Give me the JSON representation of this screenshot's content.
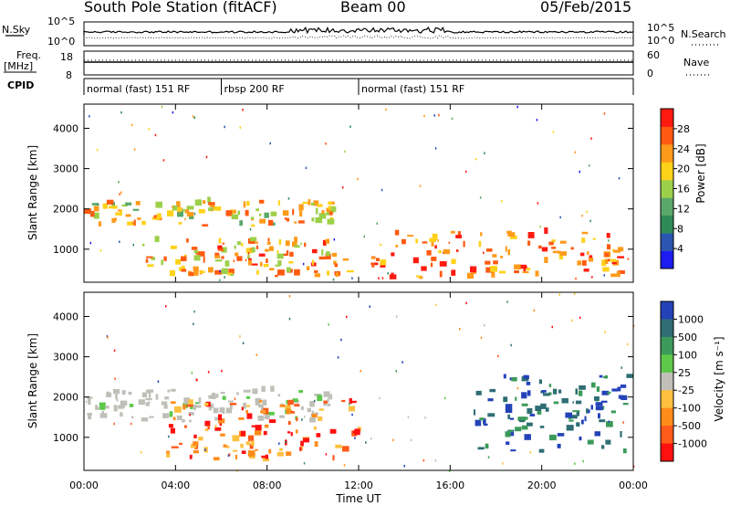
{
  "header": {
    "station": "South Pole Station (fitACF)",
    "beam": "Beam 00",
    "date": "05/Feb/2015"
  },
  "top_panels": {
    "nsky_label": "N.Sky",
    "nsearch_label": "N.Search",
    "freq_label": "Freq.",
    "freq_unit": "[MHz]",
    "nave_label": "Nave",
    "cpid_label": "CPID",
    "noise_ticks_left": [
      "10^5",
      "10^0"
    ],
    "noise_ticks_right": [
      "10^5",
      "10^0"
    ],
    "freq_ticks_left": [
      "18",
      "8"
    ],
    "nave_ticks_right": [
      "60",
      "0"
    ],
    "cpid_segments": [
      {
        "label": "normal (fast) 151 RF",
        "start_hour": 0,
        "end_hour": 6
      },
      {
        "label": "rbsp 200 RF",
        "start_hour": 6,
        "end_hour": 12
      },
      {
        "label": "normal (fast) 151 RF",
        "start_hour": 12,
        "end_hour": 24
      }
    ]
  },
  "chart_data": [
    {
      "type": "heatmap",
      "quantity": "Power",
      "ylabel": "Slant Range [km]",
      "xlabel": "Time UT",
      "xlim_hours": [
        0,
        24
      ],
      "ylim": [
        180,
        4600
      ],
      "x_ticks": [
        "00:00",
        "04:00",
        "08:00",
        "12:00",
        "16:00",
        "20:00",
        "00:00"
      ],
      "y_ticks": [
        1000,
        2000,
        3000,
        4000
      ],
      "colorbar": {
        "label": "Power [dB]",
        "range": [
          0,
          32
        ],
        "ticks": [
          4,
          8,
          12,
          16,
          20,
          24,
          28
        ],
        "colors": [
          "#1c1cf0",
          "#2b55b0",
          "#2e8b57",
          "#5aa86a",
          "#9cd04a",
          "#ffd21a",
          "#ff9a1a",
          "#ff5a10",
          "#ff1a10"
        ]
      },
      "features": [
        {
          "name": "band 1700-2100 km",
          "start_hour": 0,
          "end_hour": 10.8,
          "range_km": [
            1550,
            2150
          ],
          "level": 20
        },
        {
          "name": "near range echoes",
          "start_hour": 2.5,
          "end_hour": 11.5,
          "range_km": [
            300,
            1200
          ],
          "level": 22
        },
        {
          "name": "near range echoes afternoon",
          "start_hour": 12.5,
          "end_hour": 23.5,
          "range_km": [
            250,
            1400
          ],
          "level": 26
        }
      ]
    },
    {
      "type": "heatmap",
      "quantity": "Velocity",
      "ylabel": "Slant Range [km]",
      "xlabel": "Time UT",
      "xlim_hours": [
        0,
        24
      ],
      "ylim": [
        180,
        4600
      ],
      "x_ticks": [
        "00:00",
        "04:00",
        "08:00",
        "12:00",
        "16:00",
        "20:00",
        "00:00"
      ],
      "y_ticks": [
        1000,
        2000,
        3000,
        4000
      ],
      "colorbar": {
        "label": "Velocity [m s⁻¹]",
        "ticks": [
          "1000",
          "500",
          "100",
          "25",
          "-25",
          "-100",
          "-500",
          "-1000"
        ],
        "colors": [
          "#2442b8",
          "#2e6e74",
          "#3c9a5a",
          "#5dc84a",
          "#c0c0b8",
          "#ffc040",
          "#ff8c1a",
          "#ff5a1a",
          "#ff1010"
        ]
      },
      "features": [
        {
          "name": "ground scatter band",
          "start_hour": 0,
          "end_hour": 10.8,
          "range_km": [
            1350,
            2150
          ],
          "velocity": 0
        },
        {
          "name": "negative velocity echoes",
          "start_hour": 3.5,
          "end_hour": 12,
          "range_km": [
            400,
            1900
          ],
          "velocity": -500
        },
        {
          "name": "positive velocity echoes",
          "start_hour": 17,
          "end_hour": 23.8,
          "range_km": [
            600,
            2500
          ],
          "velocity": 500
        }
      ]
    }
  ]
}
